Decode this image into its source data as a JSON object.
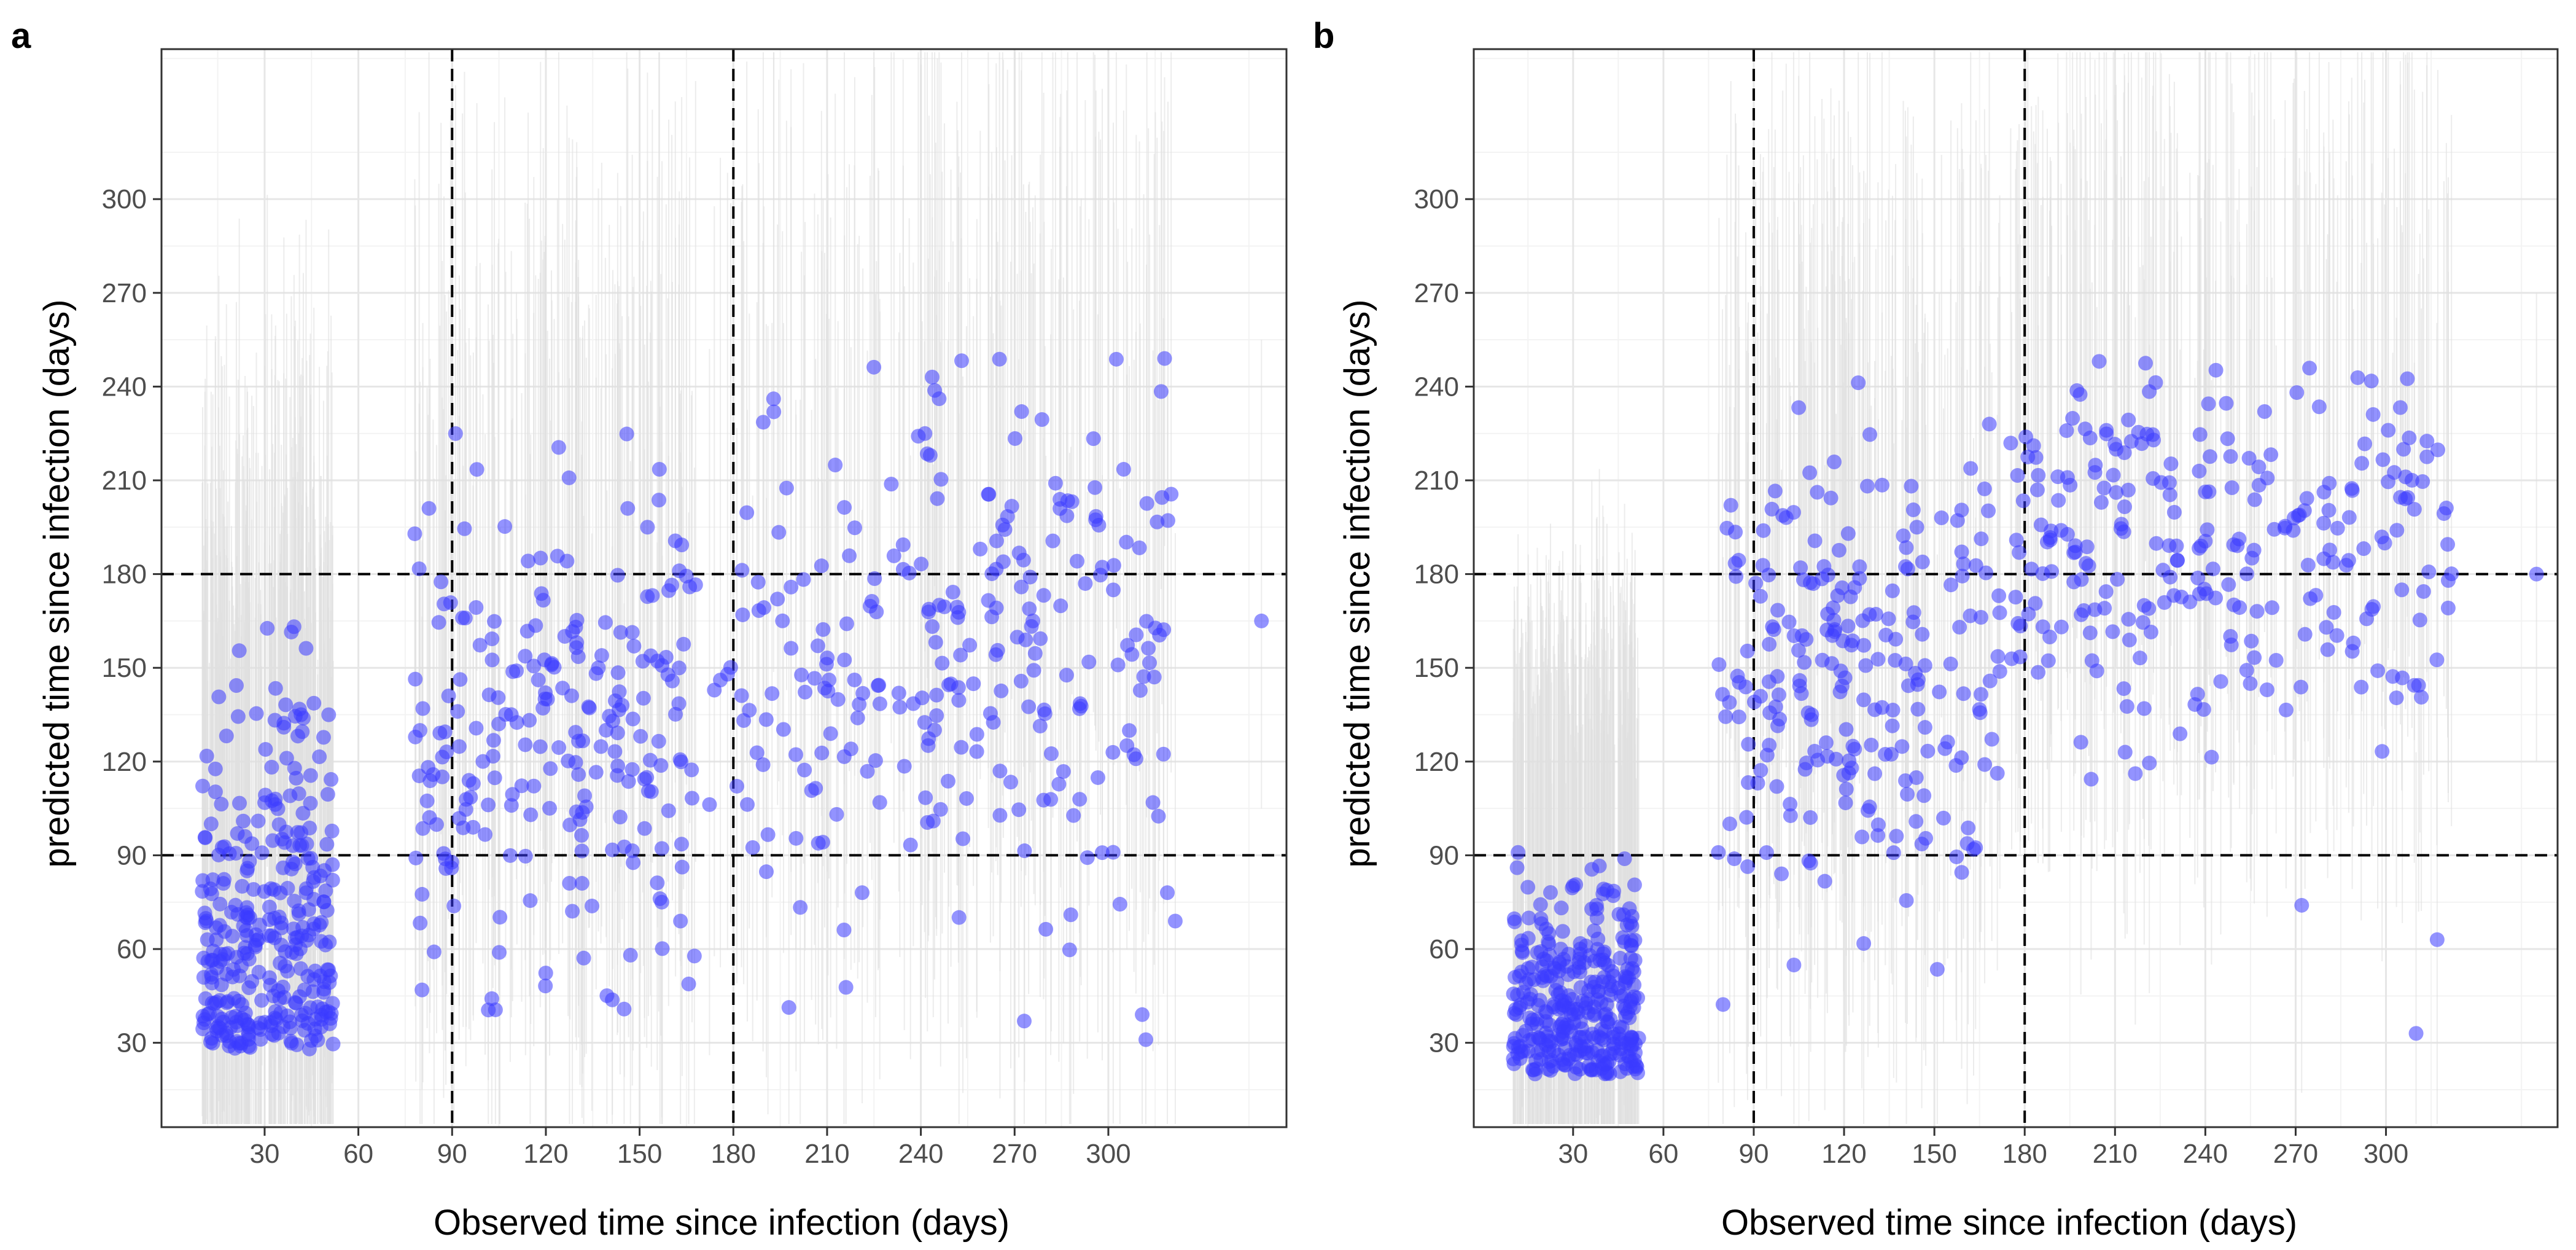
{
  "chart_data": [
    {
      "type": "scatter",
      "panel_label": "a",
      "xlabel": "Observed time since infection (days)",
      "ylabel": "predicted time since infection (days)",
      "xlim": [
        -3,
        357
      ],
      "ylim": [
        3,
        348
      ],
      "x_ticks": [
        30,
        60,
        90,
        120,
        150,
        180,
        210,
        240,
        270,
        300
      ],
      "y_ticks": [
        30,
        60,
        90,
        120,
        150,
        180,
        210,
        240,
        270,
        300
      ],
      "reference_lines": {
        "vertical": [
          90,
          180
        ],
        "horizontal": [
          90,
          180
        ]
      },
      "grid": true,
      "point_color": "#3b3bff",
      "interval_color": "#e0e0e0",
      "groups": [
        {
          "x_range": [
            10,
            52
          ],
          "y_center": 62,
          "y_spread": 38,
          "y_min": 28,
          "y_max": 235,
          "count": 330,
          "interval_half_width": 130
        },
        {
          "x_range": [
            78,
            168
          ],
          "y_center": 125,
          "y_spread": 42,
          "y_min": 40,
          "y_max": 225,
          "count": 230,
          "interval_half_width": 135
        },
        {
          "x_range": [
            172,
            322
          ],
          "y_center": 150,
          "y_spread": 48,
          "y_min": 30,
          "y_max": 250,
          "count": 260,
          "interval_half_width": 140
        }
      ],
      "highlighted_points": [
        {
          "x": 243,
          "y": 218
        },
        {
          "x": 318,
          "y": 249
        },
        {
          "x": 312,
          "y": 31
        },
        {
          "x": 349,
          "y": 165
        }
      ]
    },
    {
      "type": "scatter",
      "panel_label": "b",
      "xlabel": "Observed time since infection (days)",
      "ylabel": "predicted time since infection (days)",
      "xlim": [
        -3,
        357
      ],
      "ylim": [
        3,
        348
      ],
      "x_ticks": [
        30,
        60,
        90,
        120,
        150,
        180,
        210,
        240,
        270,
        300
      ],
      "y_ticks": [
        30,
        60,
        90,
        120,
        150,
        180,
        210,
        240,
        270,
        300
      ],
      "reference_lines": {
        "vertical": [
          90,
          180
        ],
        "horizontal": [
          90,
          180
        ]
      },
      "grid": true,
      "point_color": "#3b3bff",
      "interval_color": "#e0e0e0",
      "groups": [
        {
          "x_range": [
            10,
            52
          ],
          "y_center": 38,
          "y_spread": 20,
          "y_min": 20,
          "y_max": 210,
          "count": 340,
          "interval_half_width": 110
        },
        {
          "x_range": [
            78,
            172
          ],
          "y_center": 150,
          "y_spread": 38,
          "y_min": 30,
          "y_max": 252,
          "count": 230,
          "interval_half_width": 130
        },
        {
          "x_range": [
            175,
            322
          ],
          "y_center": 190,
          "y_spread": 30,
          "y_min": 30,
          "y_max": 250,
          "count": 260,
          "interval_half_width": 125
        }
      ],
      "highlighted_points": [
        {
          "x": 350,
          "y": 180
        },
        {
          "x": 272,
          "y": 74
        },
        {
          "x": 317,
          "y": 63
        },
        {
          "x": 310,
          "y": 33
        }
      ]
    }
  ]
}
